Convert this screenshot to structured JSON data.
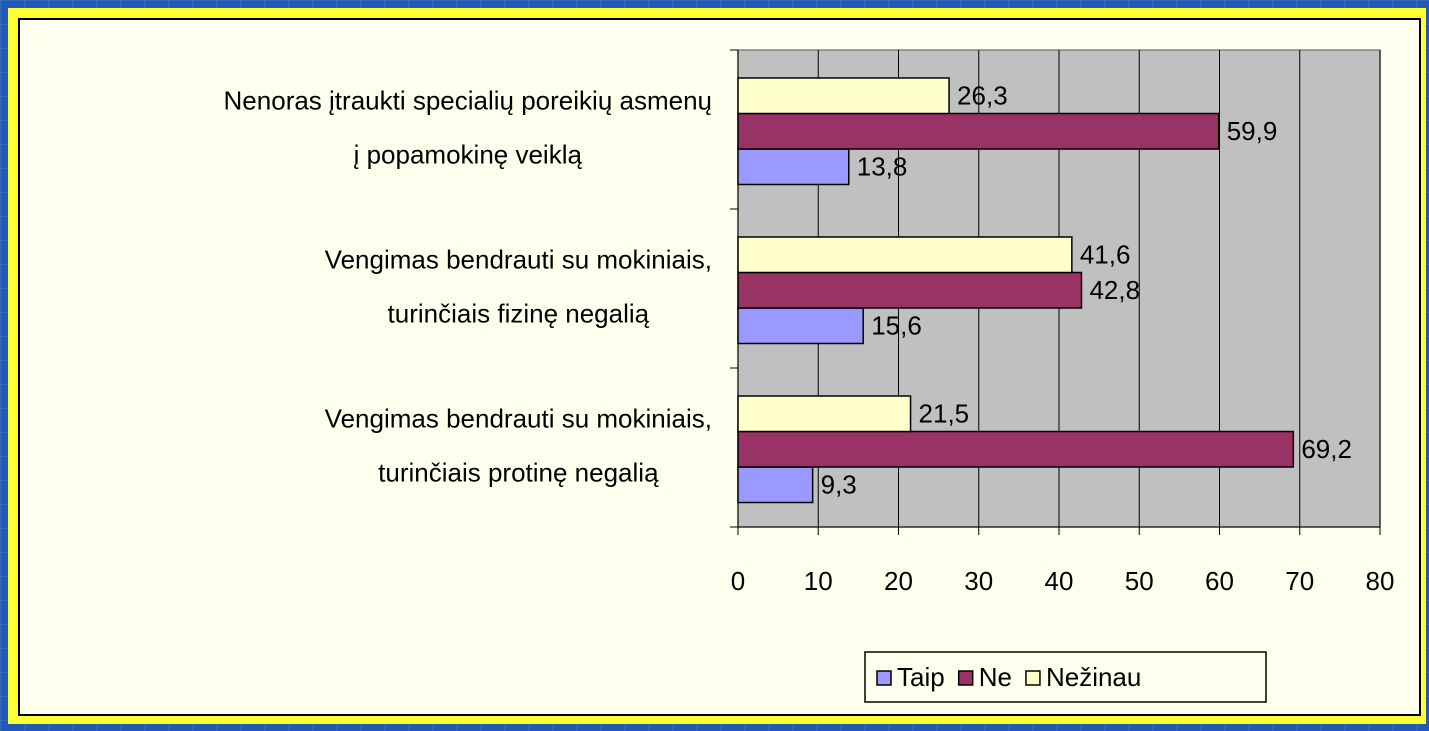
{
  "chart_data": {
    "type": "bar",
    "orientation": "horizontal",
    "categories": [
      [
        "Nenoras įtraukti specialių poreikių asmenų",
        "į popamokinę veiklą"
      ],
      [
        "Vengimas bendrauti su mokiniais,",
        "turinčiais fizinę negalią"
      ],
      [
        "Vengimas bendrauti su mokiniais,",
        "turinčiais protinę negalią"
      ]
    ],
    "series": [
      {
        "name": "Taip",
        "color": "#9999ff",
        "values": [
          13.8,
          15.6,
          9.3
        ],
        "value_labels": [
          "13,8",
          "15,6",
          "9,3"
        ]
      },
      {
        "name": "Ne",
        "color": "#993366",
        "values": [
          59.9,
          42.8,
          69.2
        ],
        "value_labels": [
          "59,9",
          "42,8",
          "69,2"
        ]
      },
      {
        "name": "Nežinau",
        "color": "#ffffcc",
        "values": [
          26.3,
          41.6,
          21.5
        ],
        "value_labels": [
          "26,3",
          "41,6",
          "21,5"
        ]
      }
    ],
    "xlim": [
      0,
      80
    ],
    "xticks": [
      0,
      10,
      20,
      30,
      40,
      50,
      60,
      70,
      80
    ],
    "grid": true,
    "legend": "bottom"
  }
}
